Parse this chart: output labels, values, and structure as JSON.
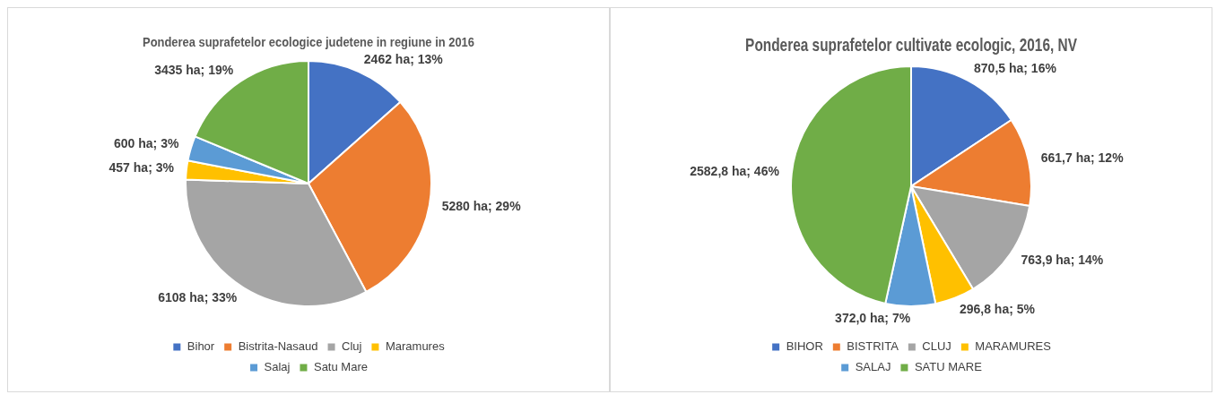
{
  "chart_data": [
    {
      "type": "pie",
      "title": "Ponderea suprafetelor ecologice judetene in regiune in 2016",
      "categories": [
        "Bihor",
        "Bistrita-Nasaud",
        "Cluj",
        "Maramures",
        "Salaj",
        "Satu Mare"
      ],
      "values": [
        2462,
        5280,
        6108,
        457,
        600,
        3435
      ],
      "colors": [
        "#4472c4",
        "#ed7d31",
        "#a5a5a5",
        "#ffc000",
        "#5b9bd5",
        "#70ad47"
      ],
      "value_labels": [
        "2462 ha; 13%",
        "5280 ha; 29%",
        "6108 ha; 33%",
        "457 ha; 3%",
        "600 ha; 3%",
        "3435 ha; 19%"
      ],
      "legend": "bottom"
    },
    {
      "type": "pie",
      "title": "Ponderea suprafetelor cultivate ecologic, 2016, NV",
      "categories": [
        "BIHOR",
        "BISTRITA",
        "CLUJ",
        "MARAMURES",
        "SALAJ",
        "SATU MARE"
      ],
      "values": [
        870.5,
        661.7,
        763.9,
        296.8,
        372.0,
        2582.8
      ],
      "colors": [
        "#4472c4",
        "#ed7d31",
        "#a5a5a5",
        "#ffc000",
        "#5b9bd5",
        "#70ad47"
      ],
      "value_labels": [
        "870,5 ha; 16%",
        "661,7 ha; 12%",
        "763,9 ha; 14%",
        "296,8 ha; 5%",
        "372,0 ha; 7%",
        "2582,8 ha; 46%"
      ],
      "legend": "bottom"
    }
  ]
}
